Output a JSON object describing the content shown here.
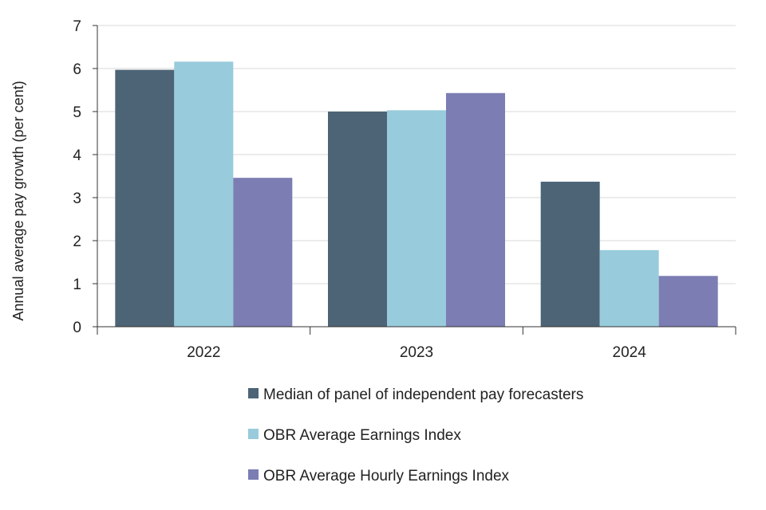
{
  "chart_data": {
    "type": "bar",
    "title": "",
    "xlabel": "",
    "ylabel": "Annual average pay growth (per cent)",
    "categories": [
      "2022",
      "2023",
      "2024"
    ],
    "ylim": [
      0,
      7
    ],
    "yticks": [
      0,
      1,
      2,
      3,
      4,
      5,
      6,
      7
    ],
    "grid": true,
    "legend_position": "bottom",
    "series": [
      {
        "name": "Median of panel of independent pay forecasters",
        "color": "#4d6476",
        "values": [
          5.97,
          5.0,
          3.37
        ]
      },
      {
        "name": "OBR Average Earnings Index",
        "color": "#98cbdb",
        "values": [
          6.16,
          5.03,
          1.78
        ]
      },
      {
        "name": "OBR Average Hourly Earnings Index",
        "color": "#7b7db3",
        "values": [
          3.46,
          5.43,
          1.18
        ]
      }
    ]
  }
}
